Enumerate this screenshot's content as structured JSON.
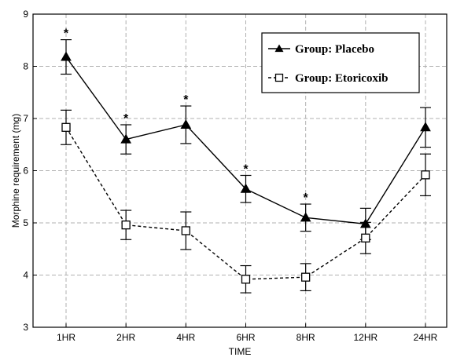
{
  "chart_data": {
    "type": "line",
    "title": "",
    "xlabel": "TIME",
    "ylabel": "Morphine requirement (mg)",
    "categories": [
      "1HR",
      "2HR",
      "4HR",
      "6HR",
      "8HR",
      "12HR",
      "24HR"
    ],
    "ylim": [
      3,
      9
    ],
    "yticks": [
      "3",
      "4",
      "5",
      "6",
      "7",
      "8",
      "9"
    ],
    "grid": true,
    "legend_position": "top-right",
    "series": [
      {
        "name": "Group: Placebo",
        "marker": "filled-triangle",
        "line_style": "solid",
        "values": [
          8.18,
          6.6,
          6.88,
          5.65,
          5.1,
          4.98,
          6.83
        ],
        "error": [
          0.33,
          0.28,
          0.36,
          0.26,
          0.26,
          0.3,
          0.38
        ]
      },
      {
        "name": "Group: Etoricoxib",
        "marker": "open-square",
        "line_style": "dashed",
        "values": [
          6.83,
          4.96,
          4.85,
          3.92,
          3.96,
          4.71,
          5.92
        ],
        "error": [
          0.33,
          0.28,
          0.36,
          0.26,
          0.26,
          0.3,
          0.4
        ]
      }
    ],
    "annotations": [
      {
        "label": "*",
        "category": "1HR"
      },
      {
        "label": "*",
        "category": "2HR"
      },
      {
        "label": "*",
        "category": "4HR"
      },
      {
        "label": "*",
        "category": "6HR"
      },
      {
        "label": "*",
        "category": "8HR"
      }
    ]
  },
  "colors": {
    "line": "#000000",
    "grid": "#b0b0b0",
    "marker_open_fill": "#ffffff"
  }
}
